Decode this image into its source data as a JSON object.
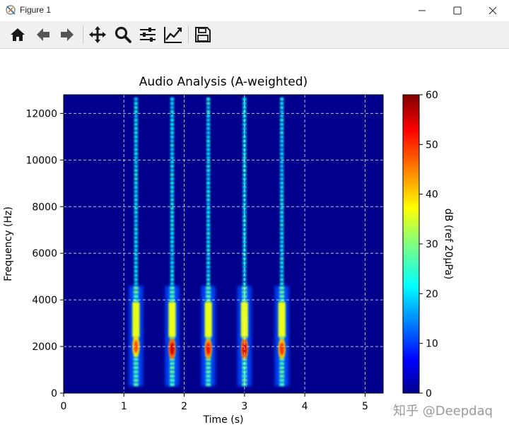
{
  "window": {
    "title": "Figure 1",
    "controls": [
      "minimize",
      "maximize",
      "close"
    ]
  },
  "toolbar": {
    "buttons": [
      {
        "icon": "home-icon",
        "label": "Home"
      },
      {
        "icon": "back-arrow-icon",
        "label": "Back"
      },
      {
        "icon": "forward-arrow-icon",
        "label": "Forward"
      },
      {
        "icon": "pan-move-icon",
        "label": "Pan"
      },
      {
        "icon": "zoom-magnifier-icon",
        "label": "Zoom"
      },
      {
        "icon": "subplots-sliders-icon",
        "label": "Subplots"
      },
      {
        "icon": "edit-curve-icon",
        "label": "Customize"
      },
      {
        "icon": "save-disk-icon",
        "label": "Save"
      }
    ]
  },
  "chart_data": {
    "type": "heatmap",
    "title": "Audio Analysis (A-weighted)",
    "xlabel": "Time (s)",
    "ylabel": "Frequency (Hz)",
    "xlim": [
      0,
      5.3
    ],
    "ylim": [
      0,
      12800
    ],
    "xticks": [
      0,
      1,
      2,
      3,
      4,
      5
    ],
    "yticks": [
      0,
      2000,
      4000,
      6000,
      8000,
      10000,
      12000
    ],
    "grid": true,
    "colormap": "jet",
    "colorbar": {
      "label": "dB (ref 20μPa)",
      "range": [
        0,
        60
      ],
      "ticks": [
        0,
        10,
        20,
        30,
        40,
        50,
        60
      ]
    },
    "events": [
      {
        "time": 1.2,
        "peak_freq_hz": 2000,
        "peak_db": 48
      },
      {
        "time": 1.8,
        "peak_freq_hz": 1900,
        "peak_db": 55
      },
      {
        "time": 2.4,
        "peak_freq_hz": 1900,
        "peak_db": 52
      },
      {
        "time": 3.0,
        "peak_freq_hz": 1900,
        "peak_db": 55
      },
      {
        "time": 3.62,
        "peak_freq_hz": 1900,
        "peak_db": 50
      }
    ]
  },
  "watermark": "知乎 @Deepdaq"
}
